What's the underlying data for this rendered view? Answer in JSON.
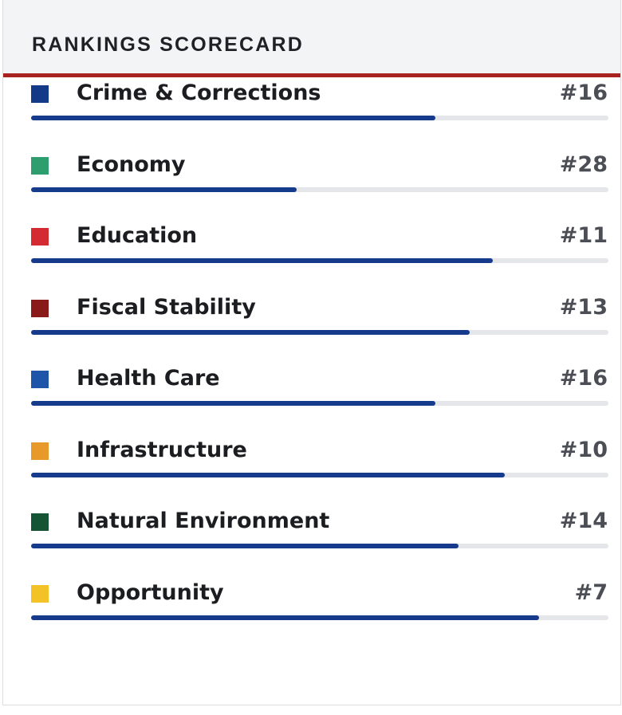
{
  "header": {
    "title": "RANKINGS SCORECARD",
    "accent_color": "#a8231f"
  },
  "bar_color": "#163b8c",
  "track_color": "#e4e6ea",
  "rankings": [
    {
      "label": "Crime & Corrections",
      "rank": "#16",
      "color": "#123a87",
      "progress": 0.7
    },
    {
      "label": "Economy",
      "rank": "#28",
      "color": "#2e9e6e",
      "progress": 0.46
    },
    {
      "label": "Education",
      "rank": "#11",
      "color": "#d42a32",
      "progress": 0.8
    },
    {
      "label": "Fiscal Stability",
      "rank": "#13",
      "color": "#8a1a1a",
      "progress": 0.76
    },
    {
      "label": "Health Care",
      "rank": "#16",
      "color": "#1f55a8",
      "progress": 0.7
    },
    {
      "label": "Infrastructure",
      "rank": "#10",
      "color": "#e79a2a",
      "progress": 0.82
    },
    {
      "label": "Natural Environment",
      "rank": "#14",
      "color": "#145435",
      "progress": 0.74
    },
    {
      "label": "Opportunity",
      "rank": "#7",
      "color": "#f3c227",
      "progress": 0.88
    }
  ]
}
